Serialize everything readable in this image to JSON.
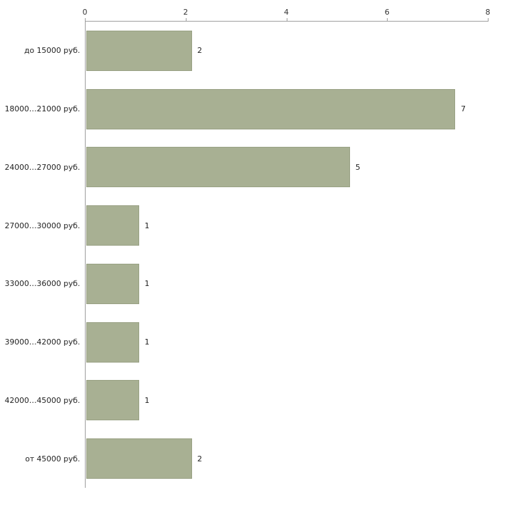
{
  "chart_data": {
    "type": "bar",
    "orientation": "horizontal",
    "title": "",
    "categories": [
      "до 15000 руб.",
      "18000…21000 руб.",
      "24000…27000 руб.",
      "27000…30000 руб.",
      "33000…36000 руб.",
      "39000…42000 руб.",
      "42000…45000 руб.",
      "от 45000 руб."
    ],
    "values": [
      2,
      7,
      5,
      1,
      1,
      1,
      1,
      2
    ],
    "xlim": [
      0,
      8
    ],
    "x_tick_labels": [
      "0",
      "2",
      "4",
      "6",
      "8"
    ],
    "bar_color": "#a8b093",
    "bar_border_color": "#99a184",
    "axis_color": "#9e9e9e",
    "grid": false,
    "legend_position": "none"
  }
}
